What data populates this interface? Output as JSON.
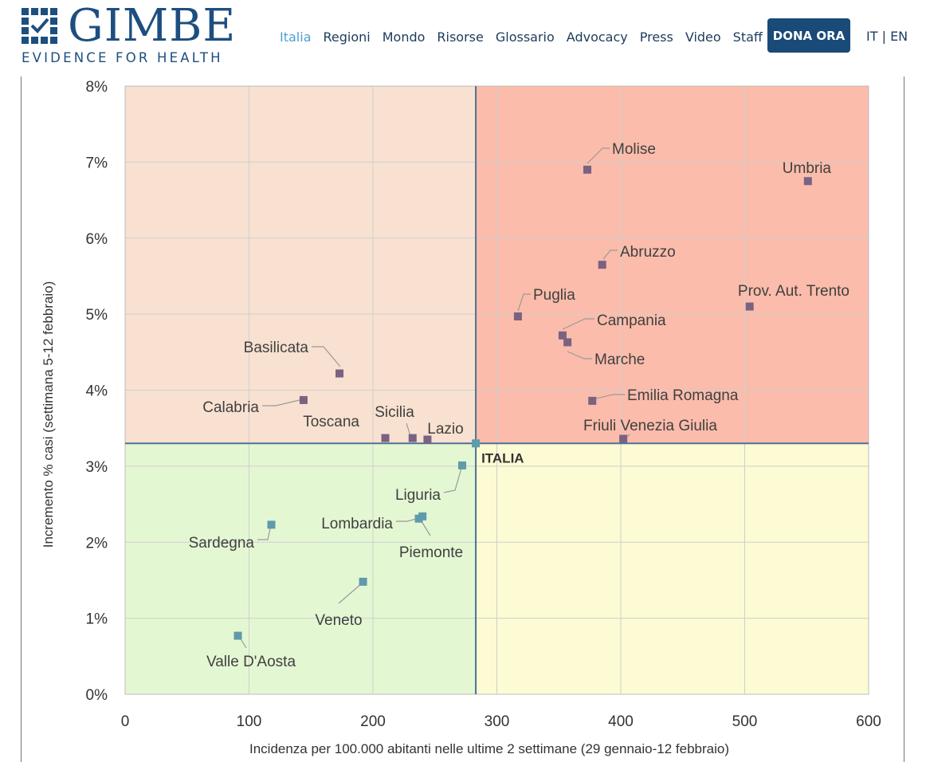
{
  "brand": {
    "name": "GIMBE",
    "tagline": "EVIDENCE FOR HEALTH",
    "logo_icon": "grid-check-icon",
    "color": "#1d4e7f"
  },
  "nav": {
    "items": [
      {
        "label": "Italia",
        "active": true
      },
      {
        "label": "Regioni",
        "active": false
      },
      {
        "label": "Mondo",
        "active": false
      },
      {
        "label": "Risorse",
        "active": false
      },
      {
        "label": "Glossario",
        "active": false
      },
      {
        "label": "Advocacy",
        "active": false
      },
      {
        "label": "Press",
        "active": false
      },
      {
        "label": "Video",
        "active": false
      },
      {
        "label": "Staff",
        "active": false
      }
    ],
    "donate_label": "DONA ORA",
    "lang_it": "IT",
    "lang_sep": " | ",
    "lang_en": "EN"
  },
  "chart_data": {
    "type": "scatter",
    "xlabel": "Incidenza per 100.000  abitanti nelle ultime 2 settimane (29 gennaio-12 febbraio)",
    "ylabel": "Incremento % casi (settimana 5-12 febbraio)",
    "xlim": [
      0,
      600
    ],
    "ylim": [
      0,
      8
    ],
    "x_ticks": [
      "0",
      "100",
      "200",
      "300",
      "400",
      "500",
      "600"
    ],
    "y_ticks": [
      "0%",
      "1%",
      "2%",
      "3%",
      "4%",
      "5%",
      "6%",
      "7%",
      "8%"
    ],
    "grid": true,
    "reference": {
      "label": "ITALIA",
      "x": 283,
      "y": 3.3
    },
    "quadrant_colors": {
      "top_left": "#f8e1d0",
      "top_right": "#fbbcab",
      "bottom_left": "#e4f7d3",
      "bottom_right": "#fcfbd3"
    },
    "marker_colors": {
      "above": "#7a6281",
      "below": "#5f9bab"
    },
    "points": [
      {
        "name": "Molise",
        "x": 373,
        "y": 6.9
      },
      {
        "name": "Umbria",
        "x": 551,
        "y": 6.75
      },
      {
        "name": "Abruzzo",
        "x": 385,
        "y": 5.65
      },
      {
        "name": "Prov. Aut. Trento",
        "x": 504,
        "y": 5.1
      },
      {
        "name": "Puglia",
        "x": 317,
        "y": 4.97
      },
      {
        "name": "Campania",
        "x": 353,
        "y": 4.72
      },
      {
        "name": "Marche",
        "x": 357,
        "y": 4.63
      },
      {
        "name": "Basilicata",
        "x": 173,
        "y": 4.22
      },
      {
        "name": "Calabria",
        "x": 144,
        "y": 3.87
      },
      {
        "name": "Emilia Romagna",
        "x": 377,
        "y": 3.86
      },
      {
        "name": "Toscana",
        "x": 210,
        "y": 3.37
      },
      {
        "name": "Sicilia",
        "x": 232,
        "y": 3.37
      },
      {
        "name": "Lazio",
        "x": 244,
        "y": 3.35
      },
      {
        "name": "Friuli Venezia Giulia",
        "x": 402,
        "y": 3.36
      },
      {
        "name": "Liguria",
        "x": 272,
        "y": 3.01
      },
      {
        "name": "Lombardia",
        "x": 240,
        "y": 2.34
      },
      {
        "name": "Piemonte",
        "x": 237,
        "y": 2.31
      },
      {
        "name": "Sardegna",
        "x": 118,
        "y": 2.23
      },
      {
        "name": "Veneto",
        "x": 192,
        "y": 1.48
      },
      {
        "name": "Valle D'Aosta",
        "x": 91,
        "y": 0.77
      }
    ]
  }
}
